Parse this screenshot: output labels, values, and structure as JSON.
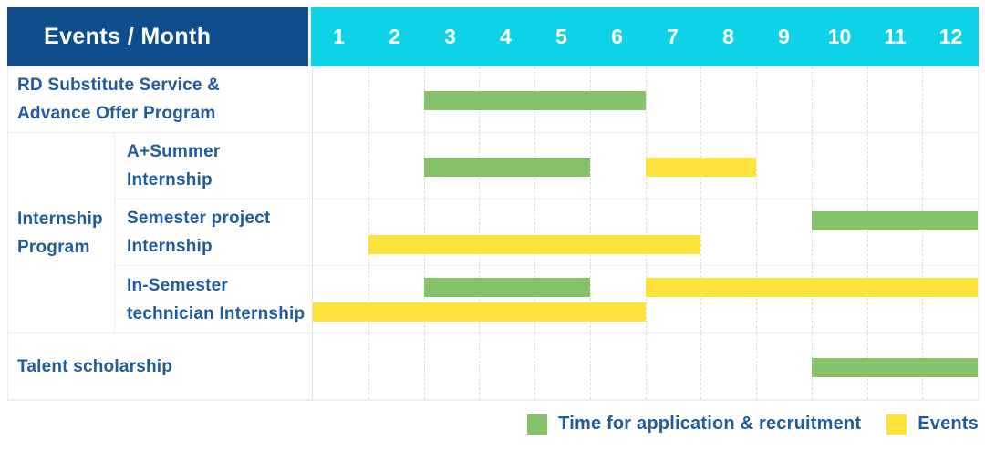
{
  "header": {
    "label": "Events / Month",
    "months": [
      "1",
      "2",
      "3",
      "4",
      "5",
      "6",
      "7",
      "8",
      "9",
      "10",
      "11",
      "12"
    ]
  },
  "colors": {
    "header_bg": "#0e4e8c",
    "months_bg": "#0ed2e8",
    "bar_green": "#85c269",
    "bar_yellow": "#fde23c",
    "label_text": "#1d5c9e",
    "header_text": "#ffffff"
  },
  "legend": {
    "items": [
      {
        "swatch": "bar_green",
        "label": "Time for application & recruitment"
      },
      {
        "swatch": "bar_yellow",
        "label": "Events"
      }
    ]
  },
  "chart_data": {
    "type": "gantt",
    "title": "Events / Month",
    "x_axis": {
      "label": "Month",
      "ticks": [
        1,
        2,
        3,
        4,
        5,
        6,
        7,
        8,
        9,
        10,
        11,
        12
      ],
      "range": [
        1,
        12
      ]
    },
    "series_legend": [
      {
        "name": "Time for application & recruitment",
        "color": "#85c269"
      },
      {
        "name": "Events",
        "color": "#fde23c"
      }
    ],
    "rows": [
      {
        "group": null,
        "label": "RD Substitute Service & Advance Offer Program",
        "label_lines": [
          "RD Substitute Service &",
          "Advance Offer Program"
        ],
        "bars": [
          {
            "series": "Time for application & recruitment",
            "color": "green",
            "start_month": 3,
            "end_month": 6,
            "lane": "center"
          }
        ]
      },
      {
        "group": "Internship Program",
        "group_lines": [
          "Internship",
          "Program"
        ],
        "label": "A+Summer Internship",
        "label_lines": [
          "A+Summer",
          "Internship"
        ],
        "bars": [
          {
            "series": "Time for application & recruitment",
            "color": "green",
            "start_month": 3,
            "end_month": 5,
            "lane": "center"
          },
          {
            "series": "Events",
            "color": "yellow",
            "start_month": 7,
            "end_month": 8,
            "lane": "center"
          }
        ]
      },
      {
        "group": "Internship Program",
        "label": "Semester project Internship",
        "label_lines": [
          "Semester project",
          "Internship"
        ],
        "bars": [
          {
            "series": "Time for application & recruitment",
            "color": "green",
            "start_month": 10,
            "end_month": 12,
            "lane": "top"
          },
          {
            "series": "Events",
            "color": "yellow",
            "start_month": 2,
            "end_month": 7,
            "lane": "bottom"
          }
        ]
      },
      {
        "group": "Internship Program",
        "label": "In-Semester technician Internship",
        "label_lines": [
          "In-Semester",
          "technician Internship"
        ],
        "bars": [
          {
            "series": "Time for application & recruitment",
            "color": "green",
            "start_month": 3,
            "end_month": 5,
            "lane": "top"
          },
          {
            "series": "Events",
            "color": "yellow",
            "start_month": 7,
            "end_month": 12,
            "lane": "top"
          },
          {
            "series": "Events",
            "color": "yellow",
            "start_month": 1,
            "end_month": 6,
            "lane": "bottom"
          }
        ]
      },
      {
        "group": null,
        "label": "Talent scholarship",
        "label_lines": [
          "Talent scholarship"
        ],
        "bars": [
          {
            "series": "Time for application & recruitment",
            "color": "green",
            "start_month": 10,
            "end_month": 12,
            "lane": "center"
          }
        ]
      }
    ]
  }
}
